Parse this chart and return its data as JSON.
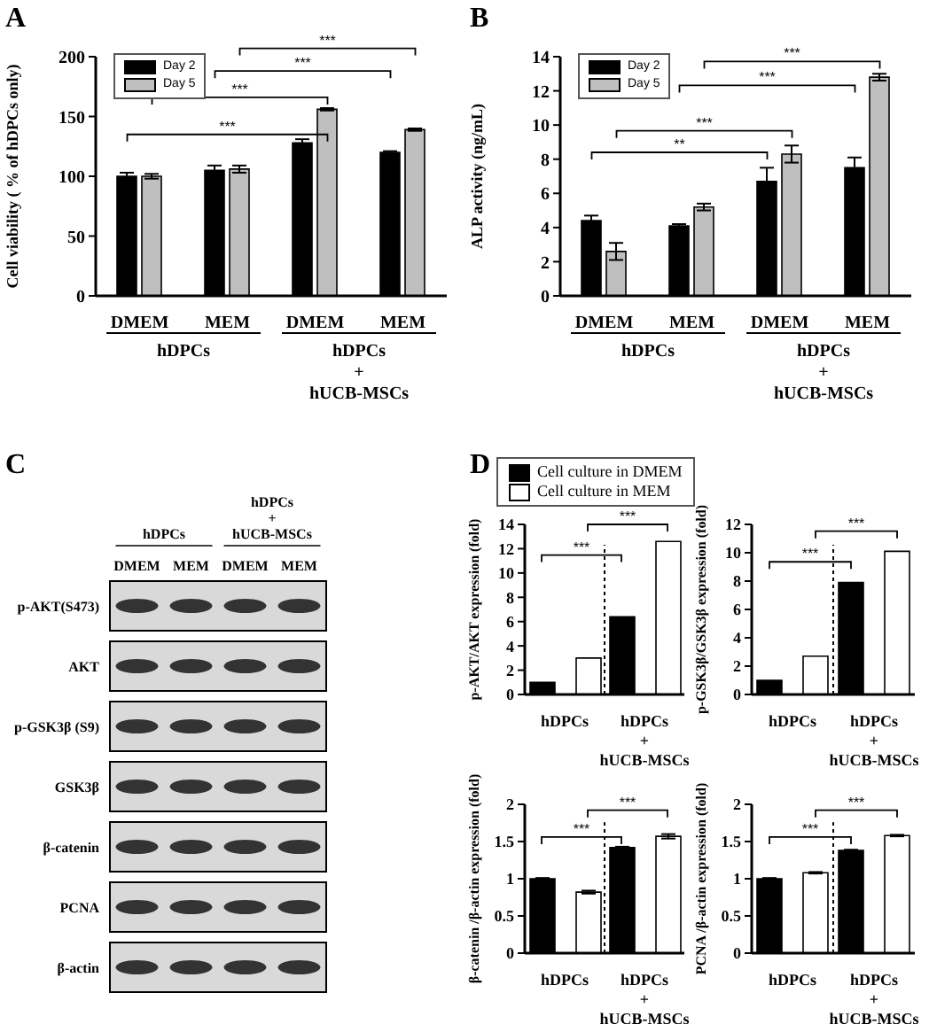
{
  "chart_data": [
    {
      "type": "bar",
      "title": "A",
      "ylabel": "Cell viability ( % of hDPCs only)",
      "categories": [
        "DMEM",
        "MEM",
        "DMEM",
        "MEM"
      ],
      "series": [
        {
          "name": "Day 2",
          "color": "#000000",
          "values": [
            100,
            105,
            128,
            120
          ],
          "errors": [
            3,
            4,
            3,
            1
          ]
        },
        {
          "name": "Day 5",
          "color": "#bfbfbf",
          "values": [
            100,
            106,
            156,
            139
          ],
          "errors": [
            2,
            3,
            1,
            1
          ]
        }
      ],
      "ylim": [
        0,
        200
      ],
      "yticks": [
        0,
        50,
        100,
        150,
        200
      ],
      "legend": "top left",
      "grid": false,
      "annotations": [
        "hDPCs",
        "hDPCs\n+\nhUCB-MSCs",
        "***",
        "***",
        "***",
        "***"
      ]
    },
    {
      "type": "bar",
      "title": "B",
      "ylabel": "ALP activity (ng/mL)",
      "categories": [
        "DMEM",
        "MEM",
        "DMEM",
        "MEM"
      ],
      "series": [
        {
          "name": "Day 2",
          "color": "#000000",
          "values": [
            4.4,
            4.1,
            6.7,
            7.5
          ],
          "errors": [
            0.3,
            0.1,
            0.8,
            0.6
          ]
        },
        {
          "name": "Day 5",
          "color": "#bfbfbf",
          "values": [
            2.6,
            5.2,
            8.3,
            12.8
          ],
          "errors": [
            0.5,
            0.2,
            0.5,
            0.2
          ]
        }
      ],
      "ylim": [
        0,
        14
      ],
      "yticks": [
        0,
        2,
        4,
        6,
        8,
        10,
        12,
        14
      ],
      "legend": "top left",
      "grid": false,
      "annotations": [
        "hDPCs",
        "hDPCs\n+\nhUCB-MSCs",
        "**",
        "***",
        "***",
        "***"
      ]
    },
    {
      "type": "other",
      "title": "C",
      "categories": [
        "DMEM",
        "MEM",
        "DMEM",
        "MEM"
      ],
      "y_categories": [
        "p-AKT(S473)",
        "AKT",
        "p-GSK3β (S9)",
        "GSK3β",
        "β-catenin",
        "PCNA",
        "β-actin"
      ],
      "annotations": [
        "hDPCs",
        "hDPCs\n+\nhUCB-MSCs"
      ]
    },
    {
      "type": "bar",
      "title": "D",
      "ylabel": "p-AKT/AKT expression (fold)",
      "categories": [
        "hDPCs",
        "hDPCs\n+\nhUCB-MSCs"
      ],
      "series": [
        {
          "name": "Cell culture in DMEM",
          "color": "#000000",
          "values": [
            1,
            6.4
          ]
        },
        {
          "name": "Cell culture in MEM",
          "color": "#ffffff",
          "values": [
            3.0,
            12.6
          ]
        }
      ],
      "ylim": [
        0,
        14
      ],
      "yticks": [
        0,
        2,
        4,
        6,
        8,
        10,
        12,
        14
      ],
      "legend": "top",
      "grid": false,
      "annotations": [
        "***",
        "***"
      ]
    },
    {
      "type": "bar",
      "ylabel": "p-GSK3β/GSK3β expression (fold)",
      "categories": [
        "hDPCs",
        "hDPCs\n+\nhUCB-MSCs"
      ],
      "series": [
        {
          "color": "#000000",
          "values": [
            1,
            7.9
          ]
        },
        {
          "color": "#ffffff",
          "values": [
            2.7,
            10.1
          ]
        }
      ],
      "ylim": [
        0,
        12
      ],
      "yticks": [
        0,
        2,
        4,
        6,
        8,
        10,
        12
      ],
      "grid": false,
      "annotations": [
        "***",
        "***"
      ]
    },
    {
      "type": "bar",
      "ylabel": "β-catenin /β-actin expression (fold)",
      "categories": [
        "hDPCs",
        "hDPCs\n+\nhUCB-MSCs"
      ],
      "series": [
        {
          "color": "#000000",
          "values": [
            1.0,
            1.42
          ],
          "errors": [
            0.01,
            0.01
          ]
        },
        {
          "color": "#ffffff",
          "values": [
            0.82,
            1.57
          ],
          "errors": [
            0.02,
            0.03
          ]
        }
      ],
      "ylim": [
        0,
        2
      ],
      "yticks": [
        0,
        0.5,
        1,
        1.5,
        2
      ],
      "grid": false,
      "annotations": [
        "***",
        "***"
      ]
    },
    {
      "type": "bar",
      "ylabel": "PCNA /β-actin expression (fold)",
      "categories": [
        "hDPCs",
        "hDPCs\n+\nhUCB-MSCs"
      ],
      "series": [
        {
          "color": "#000000",
          "values": [
            1.0,
            1.38
          ],
          "errors": [
            0.01,
            0.01
          ]
        },
        {
          "color": "#ffffff",
          "values": [
            1.08,
            1.58
          ],
          "errors": [
            0.01,
            0.01
          ]
        }
      ],
      "ylim": [
        0,
        2
      ],
      "yticks": [
        0,
        0.5,
        1,
        1.5,
        2
      ],
      "grid": false,
      "annotations": [
        "***",
        "***"
      ]
    }
  ]
}
